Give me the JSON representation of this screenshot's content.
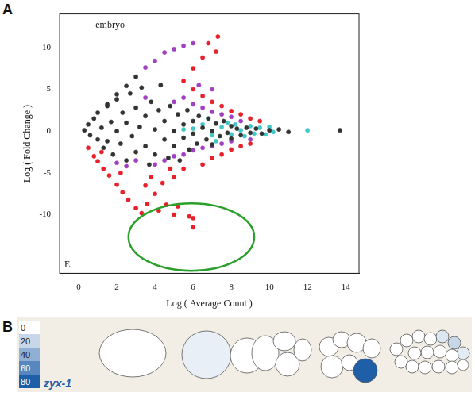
{
  "panel_labels": [
    "A",
    "B"
  ],
  "chart_data": {
    "type": "scatter",
    "annotations": [
      "embryo",
      "E"
    ],
    "x_label": "Log ( Average Count )",
    "y_label": "Log ( Fold Change )",
    "xlim": [
      -1,
      14.7
    ],
    "xticks": [
      0,
      2,
      4,
      6,
      8,
      10,
      12,
      14
    ],
    "ylim": [
      -17,
      14
    ],
    "yticks": [
      -10,
      -5,
      0,
      5,
      10
    ],
    "grid": false,
    "marker": "circle",
    "series": [
      {
        "color": "#333333",
        "x": [
          0.3,
          0.5,
          0.6,
          0.8,
          1,
          1,
          1.2,
          1.3,
          1.5,
          1.5,
          1.7,
          1.8,
          2,
          2,
          2.2,
          2.3,
          2.5,
          2.5,
          2.7,
          2.8,
          3,
          3,
          3.2,
          3.3,
          3.5,
          3.5,
          3.7,
          3.8,
          4,
          4,
          4.2,
          4.3,
          4.5,
          4.5,
          4.7,
          4.8,
          5,
          5,
          5.2,
          5.3,
          5.5,
          5.5,
          5.7,
          5.8,
          6,
          6,
          6.2,
          6.3,
          6.5,
          6.7,
          6.8,
          7,
          7,
          7.2,
          7.4,
          7.6,
          7.8,
          8,
          8,
          8.3,
          8.5,
          8.8,
          9,
          9.3,
          9.6,
          10,
          10.5,
          11,
          13.7,
          1.5,
          2,
          2.5,
          3
        ],
        "values": [
          0.1,
          0.8,
          -0.5,
          1.5,
          -1,
          2.2,
          0.4,
          -2,
          3,
          -1.2,
          1.1,
          -2.8,
          0,
          3.8,
          -1.5,
          2.2,
          -3.5,
          1,
          4.5,
          -0.6,
          2.8,
          -2.5,
          0.5,
          5.2,
          -1.8,
          1.8,
          -4,
          3.5,
          0.2,
          -2.8,
          2.5,
          5.5,
          -1,
          1.2,
          -3.2,
          3,
          0,
          -1.8,
          2,
          -3.5,
          0.8,
          -0.8,
          2.5,
          -2.2,
          1.2,
          -0.3,
          -1.5,
          1.8,
          0.4,
          -1,
          1.5,
          0,
          -1.6,
          0.9,
          -0.6,
          1.2,
          -0.2,
          0.6,
          -0.9,
          0.3,
          -0.5,
          0.4,
          -0.2,
          0.3,
          -0.3,
          0.1,
          0.2,
          -0.1,
          0.1,
          3.2,
          4.4,
          5.4,
          6.5
        ]
      },
      {
        "color": "#e8202a",
        "x": [
          0.5,
          0.8,
          1,
          1.3,
          1.6,
          2,
          2.3,
          2.6,
          3,
          3.3,
          3.6,
          4,
          4.2,
          4.6,
          5,
          5.2,
          5.8,
          6,
          6,
          4.4,
          3.8,
          5,
          5.5,
          6.5,
          7,
          7.5,
          8,
          8.5,
          9,
          5.5,
          6,
          6.5,
          6.8,
          7.3,
          7.2,
          6,
          6.5,
          7,
          7.5,
          8,
          8.5,
          9,
          9.5,
          4.8,
          3.5,
          2.2,
          1.2
        ],
        "values": [
          -2,
          -3,
          -3.6,
          -4.5,
          -5.3,
          -6.4,
          -7.3,
          -8.2,
          -9.2,
          -9.8,
          -8.7,
          -7.5,
          -9.5,
          -8.8,
          -10,
          -9,
          -10.2,
          -10.4,
          -11.5,
          -6.2,
          -5.5,
          -5.5,
          -4.5,
          -4,
          -3.2,
          -2.8,
          -2.2,
          -1.8,
          -1.5,
          6,
          7.5,
          8.8,
          10.5,
          11.3,
          9.5,
          5,
          4.2,
          3.5,
          3,
          2.4,
          2,
          1.5,
          1.2,
          -4.5,
          -6.5,
          -5,
          -2.5
        ]
      },
      {
        "color": "#a040c0",
        "x": [
          3.5,
          4,
          4.5,
          5,
          5.5,
          6,
          5,
          5.5,
          6,
          6.5,
          7,
          7.5,
          8,
          4,
          4.5,
          5,
          5.5,
          6,
          6.5,
          7,
          7.5,
          8,
          3,
          3.5,
          2.5,
          2,
          6.3,
          7,
          8.5,
          9
        ],
        "values": [
          7.6,
          8.4,
          9.4,
          9.8,
          10.2,
          10.5,
          3.5,
          4,
          3.2,
          2.8,
          2.3,
          2,
          1.7,
          -4,
          -3.5,
          -3,
          -2.8,
          -2.3,
          -2,
          -1.8,
          -1.5,
          -1.2,
          -3.5,
          4,
          -4.2,
          -3.8,
          5.5,
          5,
          1.2,
          -1
        ]
      },
      {
        "color": "#40c8c8",
        "x": [
          6,
          6.5,
          7,
          7.5,
          7.8,
          8,
          8.2,
          8.5,
          8.7,
          9,
          9.2,
          9.5,
          9.8,
          10,
          10.2,
          6.8,
          7.2,
          5.5,
          12
        ],
        "values": [
          0.3,
          0.8,
          -0.5,
          0.5,
          1,
          -0.4,
          0.8,
          0.1,
          -0.6,
          0.6,
          -0.3,
          0.4,
          -0.4,
          0.5,
          -0.1,
          1.5,
          -1.2,
          0.2,
          0.1
        ]
      }
    ]
  },
  "diagram": {
    "gene": "zyx-1",
    "scale": {
      "range": [
        0,
        80
      ],
      "values": [
        0,
        20,
        40,
        60,
        80
      ]
    },
    "stages": [
      {
        "cells": [
          0
        ]
      },
      {
        "cells": [
          8,
          0
        ]
      },
      {
        "cells": [
          0,
          0,
          0,
          0
        ]
      },
      {
        "cells": [
          0,
          0,
          0,
          0,
          0,
          0,
          80
        ]
      },
      {
        "cells": [
          0,
          0,
          0,
          0,
          12,
          20,
          10,
          0,
          0,
          0,
          0,
          0,
          0,
          0,
          0,
          0,
          0
        ]
      }
    ]
  }
}
